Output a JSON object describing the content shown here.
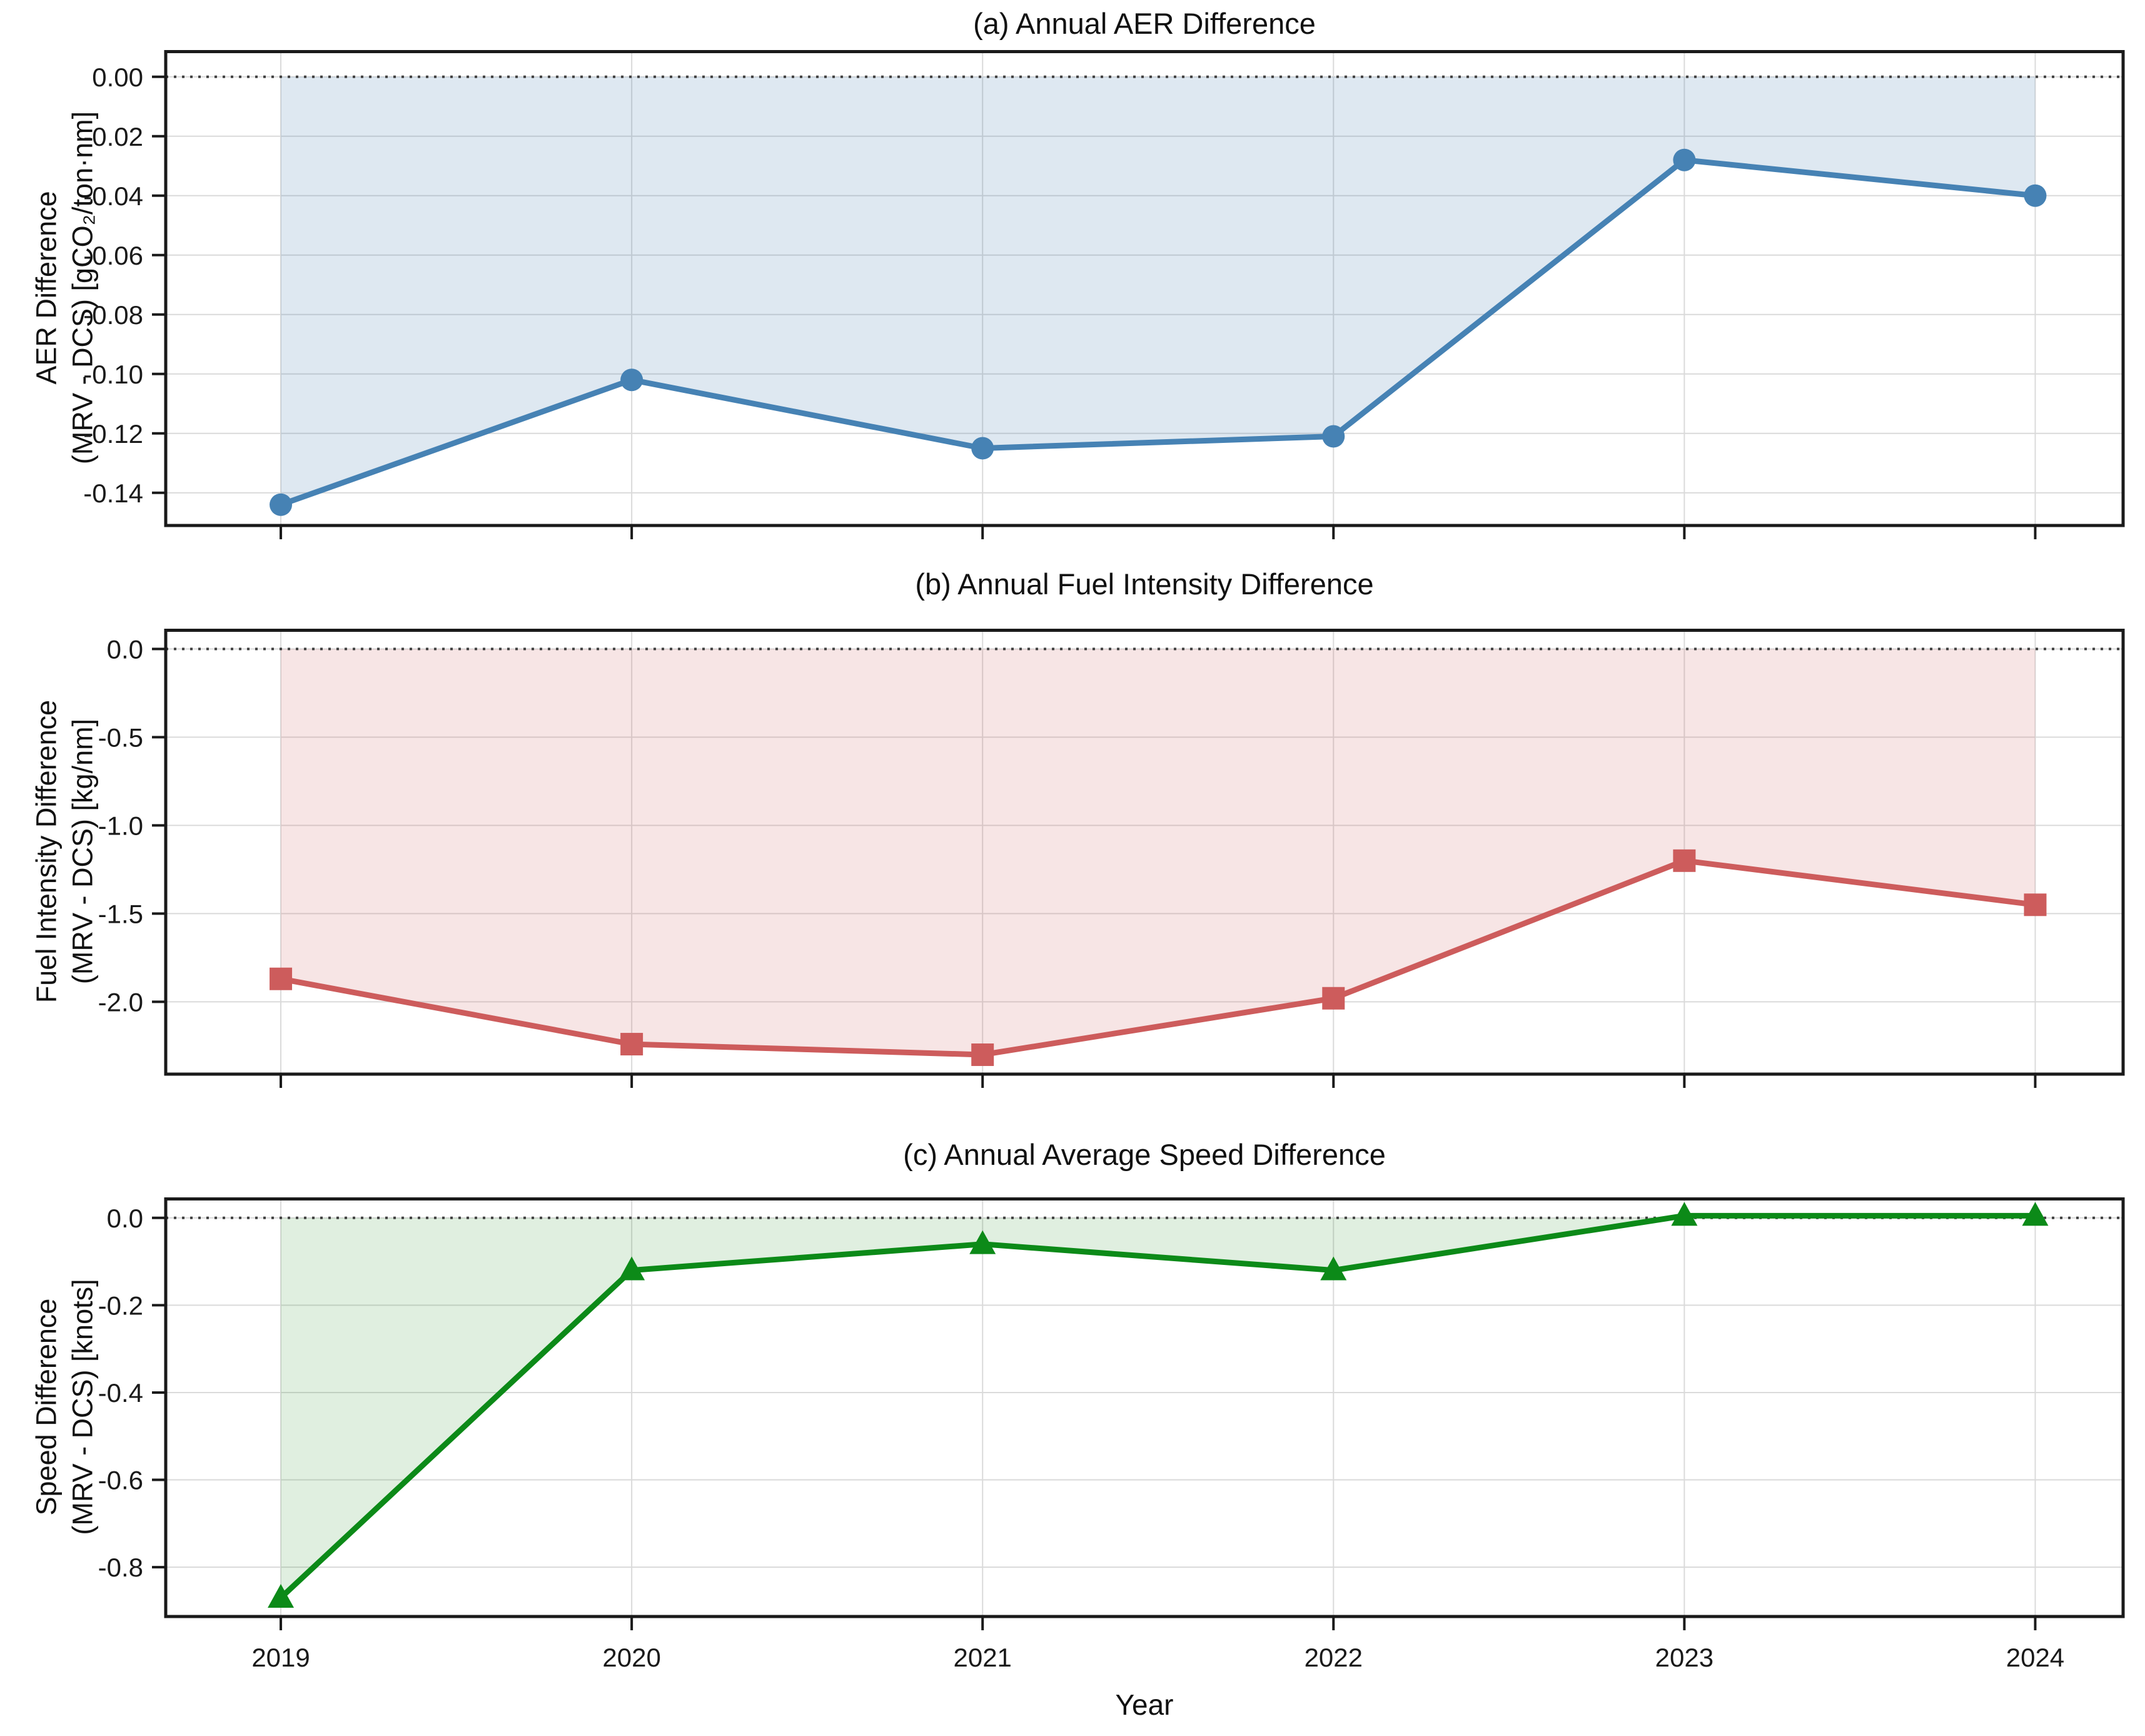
{
  "figure": {
    "xlabel": "Year",
    "background_color": "#ffffff",
    "grid_color": "#dadada",
    "zero_line_color": "#404040",
    "axis_color": "#1a1a1a"
  },
  "chart_data": [
    {
      "panel": "a",
      "type": "line",
      "title": "(a) Annual AER Difference",
      "ylabel_lines": [
        "AER Difference",
        "(MRV - DCS) [gCO₂/ton·nm]"
      ],
      "x": [
        2019,
        2020,
        2021,
        2022,
        2023,
        2024
      ],
      "y": [
        -0.144,
        -0.102,
        -0.125,
        -0.121,
        -0.028,
        -0.04
      ],
      "yticks": [
        0.0,
        -0.02,
        -0.04,
        -0.06,
        -0.08,
        -0.1,
        -0.12,
        -0.14
      ],
      "ytick_decimals": 2,
      "ylim": [
        -0.151,
        0.009
      ],
      "line_color": "#4682b4",
      "fill_color": "rgba(70,130,180,0.18)",
      "marker": "circle",
      "zero_line_at": 0,
      "grid": true,
      "legend": null
    },
    {
      "panel": "b",
      "type": "line",
      "title": "(b) Annual Fuel Intensity Difference",
      "ylabel_lines": [
        "Fuel Intensity Difference",
        "(MRV - DCS) [kg/nm]"
      ],
      "x": [
        2019,
        2020,
        2021,
        2022,
        2023,
        2024
      ],
      "y": [
        -1.87,
        -2.24,
        -2.3,
        -1.98,
        -1.2,
        -1.45
      ],
      "yticks": [
        0.0,
        -0.5,
        -1.0,
        -1.5,
        -2.0
      ],
      "ytick_decimals": 1,
      "ylim": [
        -2.41,
        0.115
      ],
      "line_color": "#cd5c5c",
      "fill_color": "rgba(205,92,92,0.16)",
      "marker": "square",
      "zero_line_at": 0,
      "grid": true,
      "legend": null
    },
    {
      "panel": "c",
      "type": "line",
      "title": "(c) Annual Average Speed Difference",
      "ylabel_lines": [
        "Speed Difference",
        "(MRV - DCS) [knots]"
      ],
      "x": [
        2019,
        2020,
        2021,
        2022,
        2023,
        2024
      ],
      "y": [
        -0.87,
        -0.12,
        -0.06,
        -0.12,
        0.005,
        0.005
      ],
      "yticks": [
        0.0,
        -0.2,
        -0.4,
        -0.6,
        -0.8
      ],
      "ytick_decimals": 1,
      "ylim": [
        -0.913,
        0.047
      ],
      "line_color": "#0c8a18",
      "fill_color": "rgba(34,139,34,0.14)",
      "marker": "triangle",
      "zero_line_at": 0,
      "grid": true,
      "legend": null
    }
  ]
}
